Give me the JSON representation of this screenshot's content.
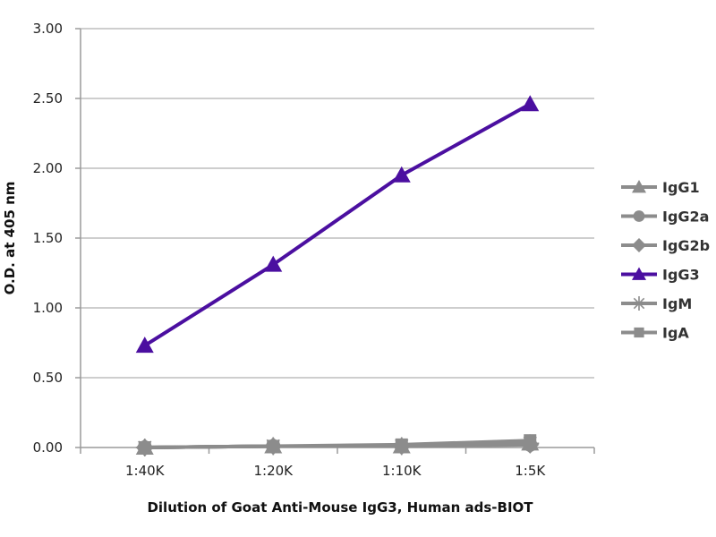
{
  "chart_data": {
    "type": "line",
    "title": "",
    "xlabel": "Dilution of Goat Anti-Mouse IgG3, Human ads-BIOT",
    "ylabel": "O.D. at 405 nm",
    "categories": [
      "1:40K",
      "1:20K",
      "1:10K",
      "1:5K"
    ],
    "y_ticks": [
      "0.00",
      "0.50",
      "1.00",
      "1.50",
      "2.00",
      "2.50",
      "3.00"
    ],
    "ylim": [
      0,
      3
    ],
    "grid": "horizontal",
    "legend_position": "right",
    "series": [
      {
        "name": "IgG1",
        "values": [
          0.0,
          0.01,
          0.01,
          0.03
        ],
        "color": "#8c8c8c",
        "marker": "triangle"
      },
      {
        "name": "IgG2a",
        "values": [
          0.0,
          0.01,
          0.01,
          0.02
        ],
        "color": "#8c8c8c",
        "marker": "circle"
      },
      {
        "name": "IgG2b",
        "values": [
          0.0,
          0.01,
          0.01,
          0.02
        ],
        "color": "#8c8c8c",
        "marker": "diamond"
      },
      {
        "name": "IgG3",
        "values": [
          0.73,
          1.31,
          1.95,
          2.46
        ],
        "color": "#4b0fa0",
        "marker": "triangle"
      },
      {
        "name": "IgM",
        "values": [
          0.0,
          0.01,
          0.01,
          0.03
        ],
        "color": "#8c8c8c",
        "marker": "asterisk"
      },
      {
        "name": "IgA",
        "values": [
          0.0,
          0.01,
          0.02,
          0.05
        ],
        "color": "#8c8c8c",
        "marker": "square"
      }
    ]
  }
}
